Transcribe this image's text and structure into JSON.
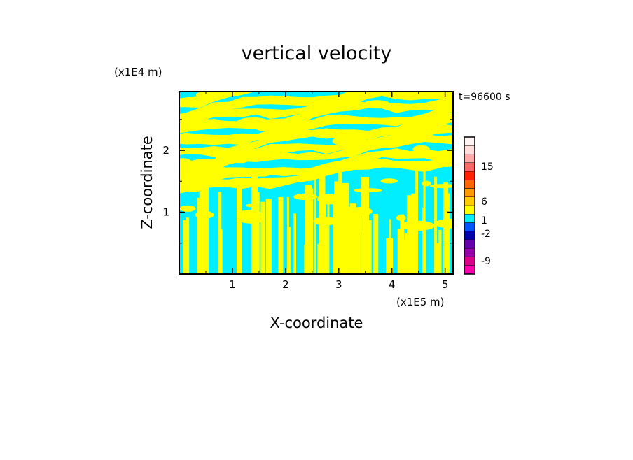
{
  "chart_data": {
    "type": "heatmap",
    "title": "vertical velocity",
    "xlabel": "X-coordinate",
    "ylabel": "Z-coordinate",
    "x_unit_label": "(x1E5 m)",
    "y_unit_label": "(x1E4 m)",
    "time_label": "t=96600 s",
    "xlim": [
      0,
      5.15
    ],
    "ylim": [
      0,
      2.95
    ],
    "x_ticks": [
      1,
      2,
      3,
      4,
      5
    ],
    "y_ticks": [
      1,
      2
    ],
    "colorbar": {
      "colors": [
        "#ff00aa",
        "#dd0088",
        "#9900aa",
        "#6600aa",
        "#0000aa",
        "#0055ff",
        "#00eeff",
        "#ffff00",
        "#ffcc00",
        "#ff9900",
        "#ff6600",
        "#ff2200",
        "#ff6666",
        "#ffaaaa",
        "#ffdddd",
        "#fff4f4"
      ],
      "tick_labels": [
        "-9",
        "-2",
        "1",
        "6",
        "15"
      ]
    },
    "field_colors": {
      "negative": "#00eeff",
      "positive": "#ffff00"
    }
  }
}
